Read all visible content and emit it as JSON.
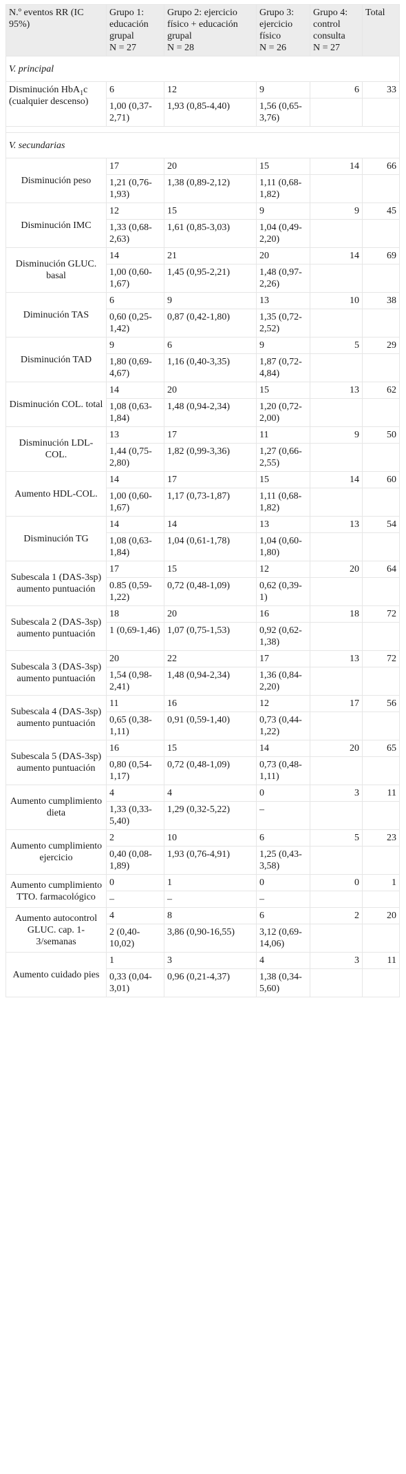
{
  "header": {
    "col0": "N.º eventos RR (IC 95%)",
    "groups": [
      {
        "name": "Grupo 1: educación grupal",
        "n": "N = 27"
      },
      {
        "name": "Grupo 2: ejercicio físico + educación grupal",
        "n": "N = 28"
      },
      {
        "name": "Grupo 3: ejercicio físico",
        "n": "N = 26"
      },
      {
        "name": "Grupo 4: control consulta",
        "n": "N = 27"
      }
    ],
    "total": "Total"
  },
  "principal": {
    "title": "V. principal",
    "label_pre": "Disminución HbA",
    "label_sub": "1",
    "label_post": "c (cualquier descenso)",
    "counts": [
      "6",
      "12",
      "9",
      "6",
      "33"
    ],
    "rr": [
      "1,00 (0,37-2,71)",
      "1,93 (0,85-4,40)",
      "1,56 (0,65-3,76)"
    ]
  },
  "secondary_title": "V. secundarias",
  "rows": [
    {
      "label": "Disminución peso",
      "counts": [
        "17",
        "20",
        "15",
        "14",
        "66"
      ],
      "rr": [
        "1,21 (0,76-1,93)",
        "1,38 (0,89-2,12)",
        "1,11 (0,68-1,82)"
      ]
    },
    {
      "label": "Disminución IMC",
      "counts": [
        "12",
        "15",
        "9",
        "9",
        "45"
      ],
      "rr": [
        "1,33 (0,68-2,63)",
        "1,61 (0,85-3,03)",
        "1,04 (0,49-2,20)"
      ]
    },
    {
      "label": "Disminución GLUC. basal",
      "counts": [
        "14",
        "21",
        "20",
        "14",
        "69"
      ],
      "rr": [
        "1,00 (0,60-1,67)",
        "1,45 (0,95-2,21)",
        "1,48 (0,97-2,26)"
      ]
    },
    {
      "label": "Diminución TAS",
      "counts": [
        "6",
        "9",
        "13",
        "10",
        "38"
      ],
      "rr": [
        "0,60 (0,25-1,42)",
        "0,87 (0,42-1,80)",
        "1,35 (0,72-2,52)"
      ]
    },
    {
      "label": "Disminución TAD",
      "counts": [
        "9",
        "6",
        "9",
        "5",
        "29"
      ],
      "rr": [
        "1,80 (0,69-4,67)",
        "1,16 (0,40-3,35)",
        "1,87 (0,72-4,84)"
      ]
    },
    {
      "label": "Disminución COL. total",
      "counts": [
        "14",
        "20",
        "15",
        "13",
        "62"
      ],
      "rr": [
        "1,08 (0,63-1,84)",
        "1,48 (0,94-2,34)",
        "1,20 (0,72-2,00)"
      ]
    },
    {
      "label": "Disminución LDL-COL.",
      "counts": [
        "13",
        "17",
        "11",
        "9",
        "50"
      ],
      "rr": [
        "1,44 (0,75-2,80)",
        "1,82 (0,99-3,36)",
        "1,27 (0,66-2,55)"
      ]
    },
    {
      "label": "Aumento HDL-COL.",
      "counts": [
        "14",
        "17",
        "15",
        "14",
        "60"
      ],
      "rr": [
        "1,00 (0,60-1,67)",
        "1,17 (0,73-1,87)",
        "1,11 (0,68-1,82)"
      ]
    },
    {
      "label": "Disminución TG",
      "counts": [
        "14",
        "14",
        "13",
        "13",
        "54"
      ],
      "rr": [
        "1,08 (0,63-1,84)",
        "1,04 (0,61-1,78)",
        "1,04 (0,60-1,80)"
      ]
    },
    {
      "label": "Subescala 1 (DAS-3sp) aumento puntuación",
      "counts": [
        "17",
        "15",
        "12",
        "20",
        "64"
      ],
      "rr": [
        "0.85 (0,59-1,22)",
        "0,72 (0,48-1,09)",
        "0,62 (0,39-1)"
      ]
    },
    {
      "label": "Subescala 2 (DAS-3sp) aumento puntuación",
      "counts": [
        "18",
        "20",
        "16",
        "18",
        "72"
      ],
      "rr": [
        "1 (0,69-1,46)",
        "1,07 (0,75-1,53)",
        "0,92 (0,62-1,38)"
      ]
    },
    {
      "label": "Subescala 3 (DAS-3sp) aumento puntuación",
      "counts": [
        "20",
        "22",
        "17",
        "13",
        "72"
      ],
      "rr": [
        "1,54 (0,98-2,41)",
        "1,48 (0,94-2,34)",
        "1,36 (0,84-2,20)"
      ]
    },
    {
      "label": "Subescala 4 (DAS-3sp) aumento puntuación",
      "counts": [
        "11",
        "16",
        "12",
        "17",
        "56"
      ],
      "rr": [
        "0,65 (0,38-1,11)",
        "0,91 (0,59-1,40)",
        "0,73 (0,44-1,22)"
      ]
    },
    {
      "label": "Subescala 5 (DAS-3sp) aumento puntuación",
      "counts": [
        "16",
        "15",
        "14",
        "20",
        "65"
      ],
      "rr": [
        "0,80 (0,54-1,17)",
        "0,72 (0,48-1,09)",
        "0,73 (0,48-1,11)"
      ]
    },
    {
      "label": "Aumento cumplimiento dieta",
      "counts": [
        "4",
        "4",
        "0",
        "3",
        "11"
      ],
      "rr": [
        "1,33 (0,33-5,40)",
        "1,29 (0,32-5,22)",
        "–"
      ]
    },
    {
      "label": "Aumento cumplimiento ejercicio",
      "counts": [
        "2",
        "10",
        "6",
        "5",
        "23"
      ],
      "rr": [
        "0,40 (0,08-1,89)",
        "1,93 (0,76-4,91)",
        "1,25 (0,43-3,58)"
      ]
    },
    {
      "label": "Aumento cumplimiento TTO. farmacológico",
      "counts": [
        "0",
        "1",
        "0",
        "0",
        "1"
      ],
      "rr": [
        "–",
        "–",
        "–"
      ]
    },
    {
      "label": "Aumento autocontrol GLUC. cap. 1-3/semanas",
      "counts": [
        "4",
        "8",
        "6",
        "2",
        "20"
      ],
      "rr": [
        "2 (0,40-10,02)",
        "3,86 (0,90-16,55)",
        "3,12 (0,69-14,06)"
      ]
    },
    {
      "label": "Aumento cuidado pies",
      "counts": [
        "1",
        "3",
        "4",
        "3",
        "11"
      ],
      "rr": [
        "0,33 (0,04-3,01)",
        "0,96 (0,21-4,37)",
        "1,38 (0,34-5,60)"
      ]
    }
  ]
}
